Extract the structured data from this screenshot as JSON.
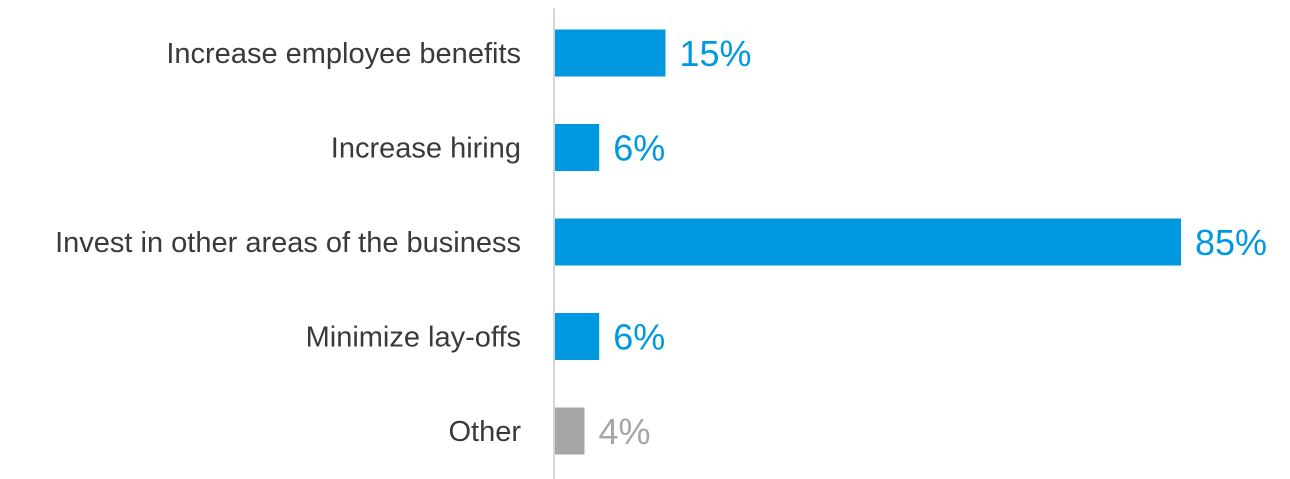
{
  "chart_data": {
    "type": "bar",
    "orientation": "horizontal",
    "title": "",
    "xlabel": "",
    "ylabel": "",
    "categories": [
      "Increase employee benefits",
      "Increase hiring",
      "Invest in other areas of the business",
      "Minimize lay-offs",
      "Other"
    ],
    "values": [
      15,
      6,
      85,
      6,
      4
    ],
    "value_labels": [
      "15%",
      "6%",
      "85%",
      "6%",
      "4%"
    ],
    "unit": "%",
    "xlim": [
      0,
      85
    ],
    "grid": false,
    "legend": "none",
    "colors": {
      "primary": "#0099e0",
      "other": "#a6a6a6",
      "axis": "#c8c8c8",
      "category_text": "#3a3a3a"
    },
    "bar_colors": [
      "#0099e0",
      "#0099e0",
      "#0099e0",
      "#0099e0",
      "#a6a6a6"
    ]
  }
}
